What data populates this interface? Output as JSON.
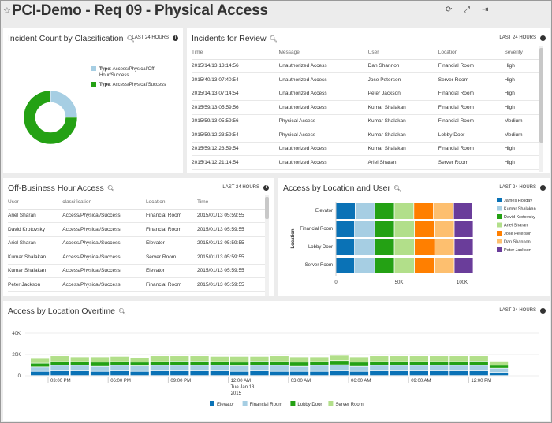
{
  "header": {
    "title": "PCI-Demo - Req 09 - Physical Access",
    "icons": [
      "star-icon",
      "refresh-icon",
      "expand-icon",
      "export-icon"
    ]
  },
  "range_label": "LAST 24 HOURS",
  "colors": {
    "James Holiday": "#0a72b6",
    "Kumar Shalakan": "#a6cee3",
    "David Krotovsky": "#24a114",
    "Ariel Sharan": "#b2df8a",
    "Jose Peterson": "#ff7f00",
    "Dan Shannon": "#fdbf6f",
    "Peter Jackson": "#6a3d9a"
  },
  "incident_count": {
    "title": "Incident Count by Classification",
    "chart_data": {
      "type": "pie",
      "donut": true,
      "slices": [
        {
          "label": "Type: Access/Physical/Off-Hour/Success",
          "key": "Type",
          "value": "Access/Physical/Off-Hour/Success",
          "share": 25,
          "color": "#a6cee3"
        },
        {
          "label": "Type: Access/Physical/Success",
          "key": "Type",
          "value": "Access/Physical/Success",
          "share": 75,
          "color": "#24a114"
        }
      ]
    }
  },
  "incidents_review": {
    "title": "Incidents for Review",
    "columns": [
      "Time",
      "Message",
      "User",
      "Location",
      "Severity"
    ],
    "rows": [
      [
        "2015/14/13 13:14:56",
        "Unauthorized Access",
        "Dan Shannon",
        "Financial Room",
        "High"
      ],
      [
        "2015/40/13 07:40:54",
        "Unauthorized Access",
        "Jose Peterson",
        "Server Room",
        "High"
      ],
      [
        "2015/14/13 07:14:54",
        "Unauthorized Access",
        "Peter Jackson",
        "Financial Room",
        "High"
      ],
      [
        "2015/59/13 05:59:56",
        "Unauthorized Access",
        "Kumar Shalakan",
        "Financial Room",
        "High"
      ],
      [
        "2015/59/13 05:59:56",
        "Physical Access",
        "Kumar Shalakan",
        "Financial Room",
        "Medium"
      ],
      [
        "2015/59/12 23:59:54",
        "Physical Access",
        "Kumar Shalakan",
        "Lobby Door",
        "Medium"
      ],
      [
        "2015/59/12 23:59:54",
        "Unauthorized Access",
        "Kumar Shalakan",
        "Financial Room",
        "High"
      ],
      [
        "2015/14/12 21:14:54",
        "Unauthorized Access",
        "Ariel Sharan",
        "Server Room",
        "High"
      ]
    ]
  },
  "off_hours": {
    "title": "Off-Business Hour Access",
    "columns": [
      "User",
      "classification",
      "Location",
      "Time"
    ],
    "rows": [
      [
        "Ariel Sharan",
        "Access/Physical/Success",
        "Financial Room",
        "2015/01/13 05:59:55"
      ],
      [
        "David Krotovsky",
        "Access/Physical/Success",
        "Financial Room",
        "2015/01/13 05:59:55"
      ],
      [
        "Ariel Sharan",
        "Access/Physical/Success",
        "Elevator",
        "2015/01/13 05:59:55"
      ],
      [
        "Kumar Shalakan",
        "Access/Physical/Success",
        "Server Room",
        "2015/01/13 05:59:55"
      ],
      [
        "Kumar Shalakan",
        "Access/Physical/Success",
        "Elevator",
        "2015/01/13 05:59:55"
      ],
      [
        "Peter Jackson",
        "Access/Physical/Success",
        "Financial Room",
        "2015/01/13 05:59:55"
      ]
    ]
  },
  "loc_user": {
    "title": "Access by Location and User",
    "chart_data": {
      "type": "bar",
      "orientation": "horizontal",
      "stacked": true,
      "ylabel": "Location",
      "categories": [
        "Elevator",
        "Financial Room",
        "Lobby Door",
        "Server Room"
      ],
      "xticks": [
        "0",
        "50K",
        "100K"
      ],
      "xlim": [
        0,
        115000
      ],
      "legend": "right",
      "series": [
        {
          "name": "James Holiday",
          "values": [
            15500,
            15000,
            15000,
            15000
          ]
        },
        {
          "name": "Kumar Shalakan",
          "values": [
            15500,
            16000,
            16000,
            16000
          ]
        },
        {
          "name": "David Krotovsky",
          "values": [
            15500,
            15500,
            15500,
            15500
          ]
        },
        {
          "name": "Ariel Sharan",
          "values": [
            15500,
            16000,
            16000,
            16000
          ]
        },
        {
          "name": "Jose Peterson",
          "values": [
            15500,
            15500,
            16000,
            15500
          ]
        },
        {
          "name": "Dan Shannon",
          "values": [
            16000,
            16000,
            15500,
            16000
          ]
        },
        {
          "name": "Peter Jackson",
          "values": [
            15000,
            15000,
            15000,
            15000
          ]
        }
      ]
    }
  },
  "overtime": {
    "title": "Access by Location Overtime",
    "chart_data": {
      "type": "bar",
      "stacked": true,
      "ylim": [
        0,
        40000
      ],
      "yticks": [
        "0",
        "20K",
        "40K"
      ],
      "xticks": [
        "03:00 PM",
        "06:00 PM",
        "09:00 PM",
        "12:00 AM",
        "03:00 AM",
        "06:00 AM",
        "09:00 AM",
        "12:00 PM"
      ],
      "xtick_sub": [
        "Tue Jan 13",
        "2015"
      ],
      "legend": "bottom",
      "series": [
        {
          "name": "Elevator",
          "color": "#0a72b6",
          "values": [
            4000,
            4500,
            4500,
            4000,
            4500,
            4000,
            4500,
            4500,
            4500,
            4500,
            4000,
            4500,
            4000,
            4000,
            4000,
            4500,
            4000,
            4500,
            4500,
            4500,
            4500,
            4500,
            4500,
            3000
          ]
        },
        {
          "name": "Financial Room",
          "color": "#a6cee3",
          "values": [
            4000,
            5000,
            5000,
            4500,
            5000,
            5000,
            5000,
            5000,
            5000,
            5000,
            5000,
            5000,
            5500,
            4500,
            5500,
            5500,
            4500,
            5000,
            5000,
            5000,
            5000,
            5000,
            5000,
            4000
          ]
        },
        {
          "name": "Lobby Door",
          "color": "#24a114",
          "values": [
            3500,
            3500,
            3500,
            4000,
            3500,
            3500,
            3500,
            4000,
            4000,
            3500,
            3500,
            4000,
            3500,
            4000,
            3500,
            4000,
            4000,
            3500,
            3500,
            3500,
            3500,
            3500,
            4000,
            2500
          ]
        },
        {
          "name": "Server Room",
          "color": "#b2df8a",
          "values": [
            4500,
            5500,
            4500,
            5000,
            5000,
            4500,
            5500,
            5000,
            5000,
            5000,
            5500,
            4500,
            5500,
            5000,
            4500,
            5000,
            5000,
            5500,
            5500,
            5500,
            5500,
            5500,
            5000,
            4000
          ]
        }
      ]
    }
  }
}
